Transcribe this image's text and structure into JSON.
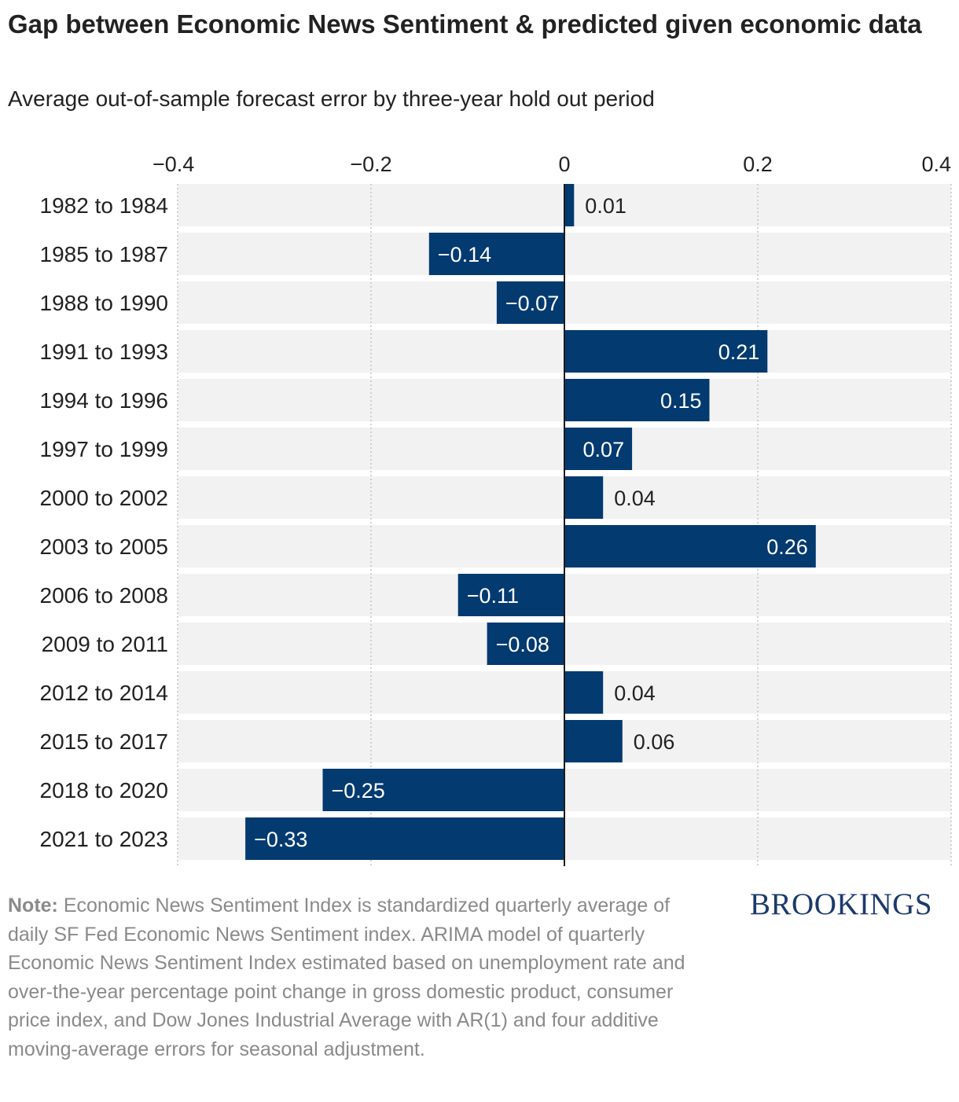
{
  "header": {
    "title": "Gap between Economic News Sentiment & predicted given economic data",
    "subtitle": "Average out-of-sample forecast error by three-year hold out period"
  },
  "chart_data": {
    "type": "bar",
    "orientation": "horizontal",
    "categories": [
      "1982 to 1984",
      "1985 to 1987",
      "1988 to 1990",
      "1991 to 1993",
      "1994 to 1996",
      "1997 to 1999",
      "2000 to 2002",
      "2003 to 2005",
      "2006 to 2008",
      "2009 to 2011",
      "2012 to 2014",
      "2015 to 2017",
      "2018 to 2020",
      "2021 to 2023"
    ],
    "values": [
      0.01,
      -0.14,
      -0.07,
      0.21,
      0.15,
      0.07,
      0.04,
      0.26,
      -0.11,
      -0.08,
      0.04,
      0.06,
      -0.25,
      -0.33
    ],
    "value_labels": [
      "0.01",
      "−0.14",
      "−0.07",
      "0.21",
      "0.15",
      "0.07",
      "0.04",
      "0.26",
      "−0.11",
      "−0.08",
      "0.04",
      "0.06",
      "−0.25",
      "−0.33"
    ],
    "xlim": [
      -0.4,
      0.4
    ],
    "xticks": [
      -0.4,
      -0.2,
      0,
      0.2,
      0.4
    ],
    "xtick_labels": [
      "−0.4",
      "−0.2",
      "0",
      "0.2",
      "0.4"
    ],
    "grid": true,
    "bar_color": "#033a70",
    "row_background": "#f2f2f2"
  },
  "footer": {
    "note_label": "Note:",
    "note_text": " Economic News Sentiment Index is standardized quarterly average of daily SF Fed Economic News Sentiment index. ARIMA model of quarterly Economic News Sentiment Index estimated based on unemployment rate and over-the-year percentage point change in gross domestic product, consumer price index, and Dow Jones Industrial Average with AR(1) and four additive moving-average errors for seasonal adjustment.",
    "brand": "BROOKINGS"
  }
}
